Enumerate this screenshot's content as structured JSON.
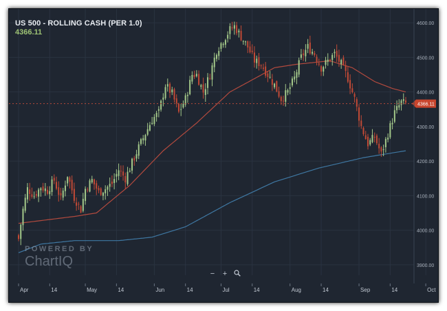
{
  "chart_title": "US 500 - ROLLING CASH (PER 1.0)",
  "last_price": "4366.11",
  "watermark": {
    "line1": "POWERED BY",
    "line2": "ChartIQ"
  },
  "zoom_controls": {
    "zoom_out": "−",
    "zoom_in": "+",
    "zoom_reset_icon": "magnifier-icon"
  },
  "colors": {
    "background": "#1f2631",
    "grid": "#2a3341",
    "up": "#a4c98a",
    "down": "#c24a36",
    "ma_fast": "#b34a3e",
    "ma_slow": "#3f78a3",
    "price_line": "#b84a3a",
    "price_label_bg": "#c8452d"
  },
  "chart_data": {
    "type": "candlestick",
    "title": "US 500 - ROLLING CASH (PER 1.0)",
    "y_ticks": [
      "3900.00",
      "4000.00",
      "4100.00",
      "4200.00",
      "4300.00",
      "4400.00",
      "4500.00",
      "4600.00"
    ],
    "ylim": [
      3870,
      4640
    ],
    "x_ticks": [
      "Apr",
      "14",
      "May",
      "14",
      "Jun",
      "14",
      "Jul",
      "14",
      "Aug",
      "14",
      "Sep",
      "14",
      "Oct",
      "14"
    ],
    "x_tick_days": [
      0,
      14,
      30,
      44,
      61,
      75,
      91,
      105,
      122,
      136,
      153,
      167,
      183,
      197
    ],
    "grid": true,
    "current_price_label": "4366.11",
    "close_anchors": [
      [
        0,
        3975
      ],
      [
        2,
        4060
      ],
      [
        4,
        4120
      ],
      [
        7,
        4100
      ],
      [
        10,
        4125
      ],
      [
        13,
        4115
      ],
      [
        16,
        4145
      ],
      [
        19,
        4090
      ],
      [
        22,
        4160
      ],
      [
        25,
        4095
      ],
      [
        28,
        4060
      ],
      [
        30,
        4120
      ],
      [
        33,
        4145
      ],
      [
        36,
        4110
      ],
      [
        39,
        4120
      ],
      [
        42,
        4135
      ],
      [
        45,
        4175
      ],
      [
        48,
        4150
      ],
      [
        51,
        4195
      ],
      [
        54,
        4240
      ],
      [
        57,
        4280
      ],
      [
        60,
        4320
      ],
      [
        63,
        4340
      ],
      [
        66,
        4420
      ],
      [
        69,
        4395
      ],
      [
        72,
        4340
      ],
      [
        75,
        4380
      ],
      [
        78,
        4450
      ],
      [
        80,
        4450
      ],
      [
        83,
        4400
      ],
      [
        86,
        4450
      ],
      [
        89,
        4520
      ],
      [
        92,
        4550
      ],
      [
        95,
        4580
      ],
      [
        97,
        4590
      ],
      [
        100,
        4560
      ],
      [
        103,
        4530
      ],
      [
        106,
        4490
      ],
      [
        109,
        4480
      ],
      [
        112,
        4450
      ],
      [
        115,
        4420
      ],
      [
        118,
        4380
      ],
      [
        121,
        4400
      ],
      [
        124,
        4440
      ],
      [
        127,
        4500
      ],
      [
        130,
        4530
      ],
      [
        133,
        4510
      ],
      [
        136,
        4470
      ],
      [
        139,
        4490
      ],
      [
        142,
        4510
      ],
      [
        145,
        4480
      ],
      [
        148,
        4440
      ],
      [
        151,
        4380
      ],
      [
        154,
        4300
      ],
      [
        157,
        4250
      ],
      [
        160,
        4270
      ],
      [
        163,
        4220
      ],
      [
        166,
        4280
      ],
      [
        169,
        4340
      ],
      [
        172,
        4370
      ],
      [
        174,
        4366.11
      ]
    ],
    "ma_fast_anchors": [
      [
        0,
        4020
      ],
      [
        25,
        4040
      ],
      [
        35,
        4050
      ],
      [
        50,
        4130
      ],
      [
        65,
        4230
      ],
      [
        80,
        4310
      ],
      [
        95,
        4400
      ],
      [
        115,
        4470
      ],
      [
        125,
        4480
      ],
      [
        140,
        4490
      ],
      [
        150,
        4470
      ],
      [
        160,
        4430
      ],
      [
        168,
        4410
      ],
      [
        174,
        4400
      ]
    ],
    "ma_slow_anchors": [
      [
        0,
        3935
      ],
      [
        10,
        3960
      ],
      [
        25,
        3970
      ],
      [
        45,
        3970
      ],
      [
        60,
        3980
      ],
      [
        75,
        4010
      ],
      [
        95,
        4080
      ],
      [
        115,
        4140
      ],
      [
        135,
        4180
      ],
      [
        155,
        4210
      ],
      [
        174,
        4230
      ]
    ]
  }
}
